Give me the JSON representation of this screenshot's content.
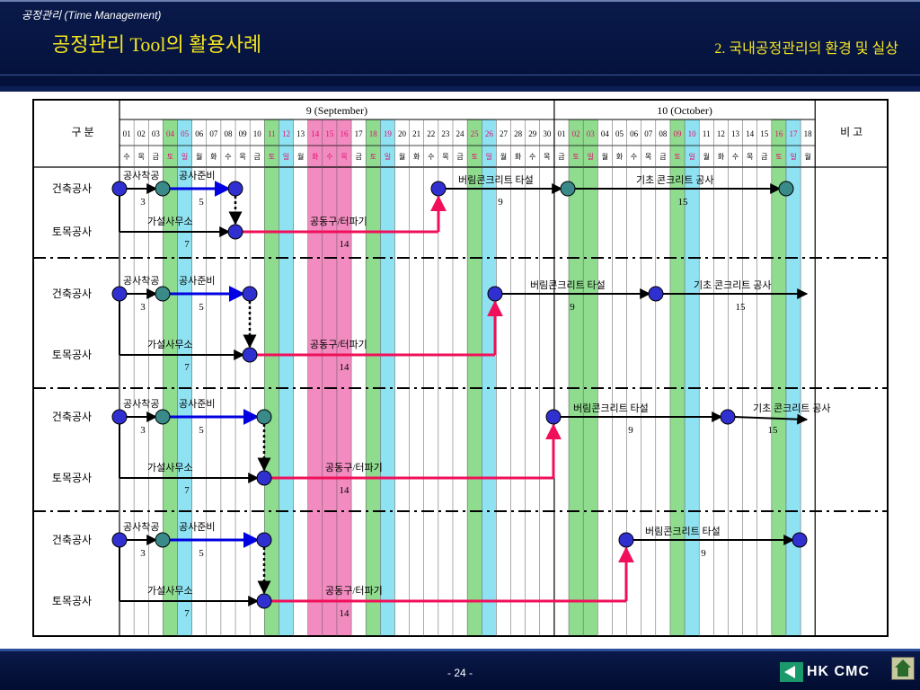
{
  "header": {
    "breadcrumb": "공정관리 (Time Management)",
    "title": "공정관리 Tool의 활용사례",
    "section": "2. 국내공정관리의 환경 및 실상"
  },
  "table": {
    "corner_label": "구      분",
    "remarks_label": "비  고",
    "months": [
      {
        "label": "9  (September)",
        "days": [
          "01",
          "02",
          "03",
          "04",
          "05",
          "06",
          "07",
          "08",
          "09",
          "10",
          "11",
          "12",
          "13",
          "14",
          "15",
          "16",
          "17",
          "18",
          "19",
          "20",
          "21",
          "22",
          "23",
          "24",
          "25",
          "26",
          "27",
          "28",
          "29",
          "30"
        ],
        "weekdays": [
          "수",
          "목",
          "금",
          "토",
          "일",
          "월",
          "화",
          "수",
          "목",
          "금",
          "토",
          "일",
          "월",
          "화",
          "수",
          "목",
          "금",
          "토",
          "일",
          "월",
          "화",
          "수",
          "목",
          "금",
          "토",
          "일",
          "월",
          "화",
          "수",
          "목"
        ]
      },
      {
        "label": "10  (October)",
        "days": [
          "01",
          "02",
          "03",
          "04",
          "05",
          "06",
          "07",
          "08",
          "09",
          "10",
          "11",
          "12",
          "13",
          "14",
          "15",
          "16",
          "17",
          "18"
        ],
        "weekdays": [
          "금",
          "토",
          "일",
          "월",
          "화",
          "수",
          "목",
          "금",
          "토",
          "일",
          "월",
          "화",
          "수",
          "목",
          "금",
          "토",
          "일",
          "월"
        ]
      }
    ],
    "row_labels": {
      "arch": "건축공사",
      "civil": "토목공사"
    },
    "highlight_colors": {
      "sat": "#8fdc8f",
      "sun": "#8fe2f2",
      "holiday": "#f28cc0",
      "day_red": "#e01070"
    }
  },
  "activities": {
    "start": "공사착공",
    "prep": "공사준비",
    "office": "가설사무소",
    "tool": "공동구/터파기",
    "pour": "버림콘크리트 타설",
    "foundation": "기초 콘크리트 공사"
  },
  "durations": {
    "start": "3",
    "prep": "5",
    "office": "7",
    "tool": "14",
    "pour": "9",
    "foundation": "15"
  },
  "footer": {
    "page": "- 24 -",
    "logo": "HK CMC"
  }
}
